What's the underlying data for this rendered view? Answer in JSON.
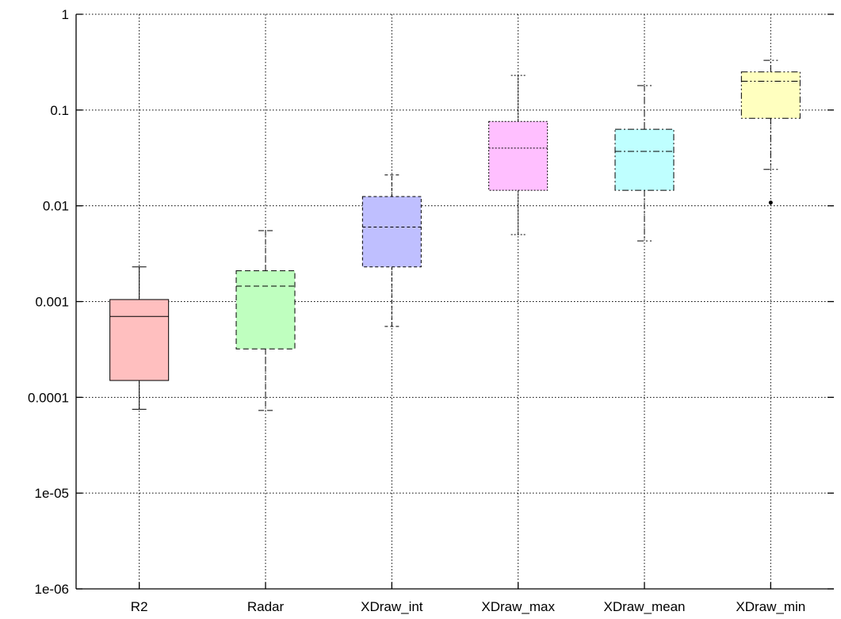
{
  "chart_data": {
    "type": "box",
    "title": "",
    "xlabel": "",
    "ylabel": "",
    "y_scale": "log",
    "ylim": [
      1e-06,
      1
    ],
    "y_ticks": [
      {
        "value": 1,
        "label": "1"
      },
      {
        "value": 0.1,
        "label": "0.1"
      },
      {
        "value": 0.01,
        "label": "0.01"
      },
      {
        "value": 0.001,
        "label": "0.001"
      },
      {
        "value": 0.0001,
        "label": "0.0001"
      },
      {
        "value": 1e-05,
        "label": "1e-05"
      },
      {
        "value": 1e-06,
        "label": "1e-06"
      }
    ],
    "grid": true,
    "series": [
      {
        "category": "R2",
        "whisker_low": 7.5e-05,
        "q1": 0.00015,
        "median": 0.0007,
        "q3": 0.00105,
        "whisker_high": 0.0023,
        "outliers": [],
        "color": "#ffbfbf",
        "line_style": "solid"
      },
      {
        "category": "Radar",
        "whisker_low": 7.3e-05,
        "q1": 0.00032,
        "median": 0.00145,
        "q3": 0.0021,
        "whisker_high": 0.0055,
        "outliers": [],
        "color": "#bfffbf",
        "line_style": "dashed"
      },
      {
        "category": "XDraw_int",
        "whisker_low": 0.00055,
        "q1": 0.0023,
        "median": 0.006,
        "q3": 0.0125,
        "whisker_high": 0.021,
        "outliers": [],
        "color": "#bfbfff",
        "line_style": "dashed-short"
      },
      {
        "category": "XDraw_max",
        "whisker_low": 0.005,
        "q1": 0.0145,
        "median": 0.04,
        "q3": 0.076,
        "whisker_high": 0.23,
        "outliers": [],
        "color": "#ffbfff",
        "line_style": "dotted"
      },
      {
        "category": "XDraw_mean",
        "whisker_low": 0.0043,
        "q1": 0.0145,
        "median": 0.037,
        "q3": 0.063,
        "whisker_high": 0.18,
        "outliers": [],
        "color": "#bfffff",
        "line_style": "dash-dot"
      },
      {
        "category": "XDraw_min",
        "whisker_low": 0.024,
        "q1": 0.082,
        "median": 0.2,
        "q3": 0.25,
        "whisker_high": 0.33,
        "outliers": [
          0.0108
        ],
        "color": "#ffffbf",
        "line_style": "dash-dot-dot"
      }
    ]
  }
}
